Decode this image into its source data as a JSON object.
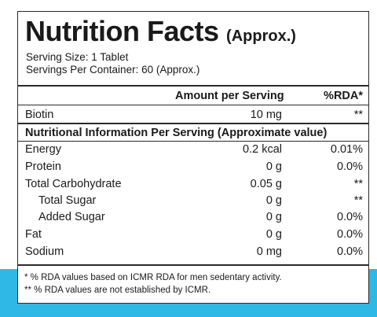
{
  "label": {
    "title": "Nutrition Facts",
    "title_suffix": "(Approx.)",
    "serving_size": "Serving Size: 1 Tablet",
    "servings_per_container": "Servings Per Container: 60 (Approx.)",
    "header": {
      "amount": "Amount per Serving",
      "rda": "%RDA*"
    },
    "biotin": {
      "name": "Biotin",
      "amount": "10 mg",
      "rda": "**"
    },
    "section_title": "Nutritional Information Per Serving (Approximate value)",
    "rows": [
      {
        "name": "Energy",
        "amount": "0.2 kcal",
        "rda": "0.01%"
      },
      {
        "name": "Protein",
        "amount": "0 g",
        "rda": "0.0%"
      },
      {
        "name": "Total Carbohydrate",
        "amount": "0.05 g",
        "rda": "**"
      },
      {
        "name": "Total Sugar",
        "amount": "0 g",
        "rda": "**"
      },
      {
        "name": "Added Sugar",
        "amount": "0 g",
        "rda": "0.0%"
      },
      {
        "name": "Fat",
        "amount": "0 g",
        "rda": "0.0%"
      },
      {
        "name": "Sodium",
        "amount": "0 mg",
        "rda": "0.0%"
      }
    ],
    "footnotes": [
      "* % RDA values based on ICMR RDA for men sedentary activity.",
      "** % RDA values are not established by ICMR."
    ]
  },
  "colors": {
    "band": "#2fb8e6",
    "border": "#2a2a2a"
  }
}
